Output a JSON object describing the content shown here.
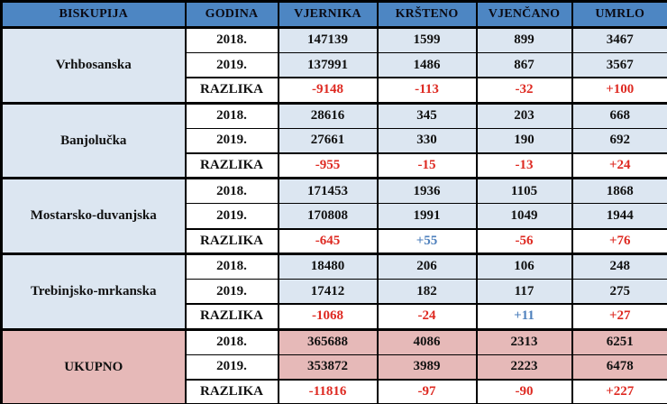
{
  "colors": {
    "header_bg": "#4D86C3",
    "blue_tint": "#DCE6F1",
    "pink_tint": "#E6B9B8",
    "negative": "#DE2A22",
    "positive": "#4F81BD",
    "text": "#111111",
    "border": "#000000"
  },
  "columns": [
    "BISKUPIJA",
    "GODINA",
    "VJERNIKA",
    "KRŠTENO",
    "VJENČANO",
    "UMRLO"
  ],
  "diff_label": "RAZLIKA",
  "groups": [
    {
      "name": "Vrhbosanska",
      "tint": "blue",
      "rows": [
        {
          "label": "2018.",
          "type": "year",
          "values": [
            "147139",
            "1599",
            "899",
            "3467"
          ]
        },
        {
          "label": "2019.",
          "type": "year",
          "values": [
            "137991",
            "1486",
            "867",
            "3567"
          ]
        },
        {
          "label": "RAZLIKA",
          "type": "diff",
          "values": [
            "-9148",
            "-113",
            "-32",
            "+100"
          ],
          "value_styles": [
            "red",
            "red",
            "red",
            "red"
          ]
        }
      ]
    },
    {
      "name": "Banjolučka",
      "tint": "blue",
      "rows": [
        {
          "label": "2018.",
          "type": "year",
          "values": [
            "28616",
            "345",
            "203",
            "668"
          ]
        },
        {
          "label": "2019.",
          "type": "year",
          "values": [
            "27661",
            "330",
            "190",
            "692"
          ]
        },
        {
          "label": "RAZLIKA",
          "type": "diff",
          "values": [
            "-955",
            "-15",
            "-13",
            "+24"
          ],
          "value_styles": [
            "red",
            "red",
            "red",
            "red"
          ]
        }
      ]
    },
    {
      "name": "Mostarsko-duvanjska",
      "tint": "blue",
      "rows": [
        {
          "label": "2018.",
          "type": "year",
          "values": [
            "171453",
            "1936",
            "1105",
            "1868"
          ]
        },
        {
          "label": "2019.",
          "type": "year",
          "values": [
            "170808",
            "1991",
            "1049",
            "1944"
          ]
        },
        {
          "label": "RAZLIKA",
          "type": "diff",
          "values": [
            "-645",
            "+55",
            "-56",
            "+76"
          ],
          "value_styles": [
            "red",
            "blue",
            "red",
            "red"
          ]
        }
      ]
    },
    {
      "name": "Trebinjsko-mrkanska",
      "tint": "blue",
      "rows": [
        {
          "label": "2018.",
          "type": "year",
          "values": [
            "18480",
            "206",
            "106",
            "248"
          ]
        },
        {
          "label": "2019.",
          "type": "year",
          "values": [
            "17412",
            "182",
            "117",
            "275"
          ]
        },
        {
          "label": "RAZLIKA",
          "type": "diff",
          "values": [
            "-1068",
            "-24",
            "+11",
            "+27"
          ],
          "value_styles": [
            "red",
            "red",
            "blue",
            "red"
          ]
        }
      ]
    },
    {
      "name": "UKUPNO",
      "tint": "pink",
      "rows": [
        {
          "label": "2018.",
          "type": "year",
          "values": [
            "365688",
            "4086",
            "2313",
            "6251"
          ]
        },
        {
          "label": "2019.",
          "type": "year",
          "values": [
            "353872",
            "3989",
            "2223",
            "6478"
          ]
        },
        {
          "label": "RAZLIKA",
          "type": "diff",
          "values": [
            "-11816",
            "-97",
            "-90",
            "+227"
          ],
          "value_styles": [
            "red",
            "red",
            "red",
            "red"
          ]
        }
      ]
    }
  ]
}
